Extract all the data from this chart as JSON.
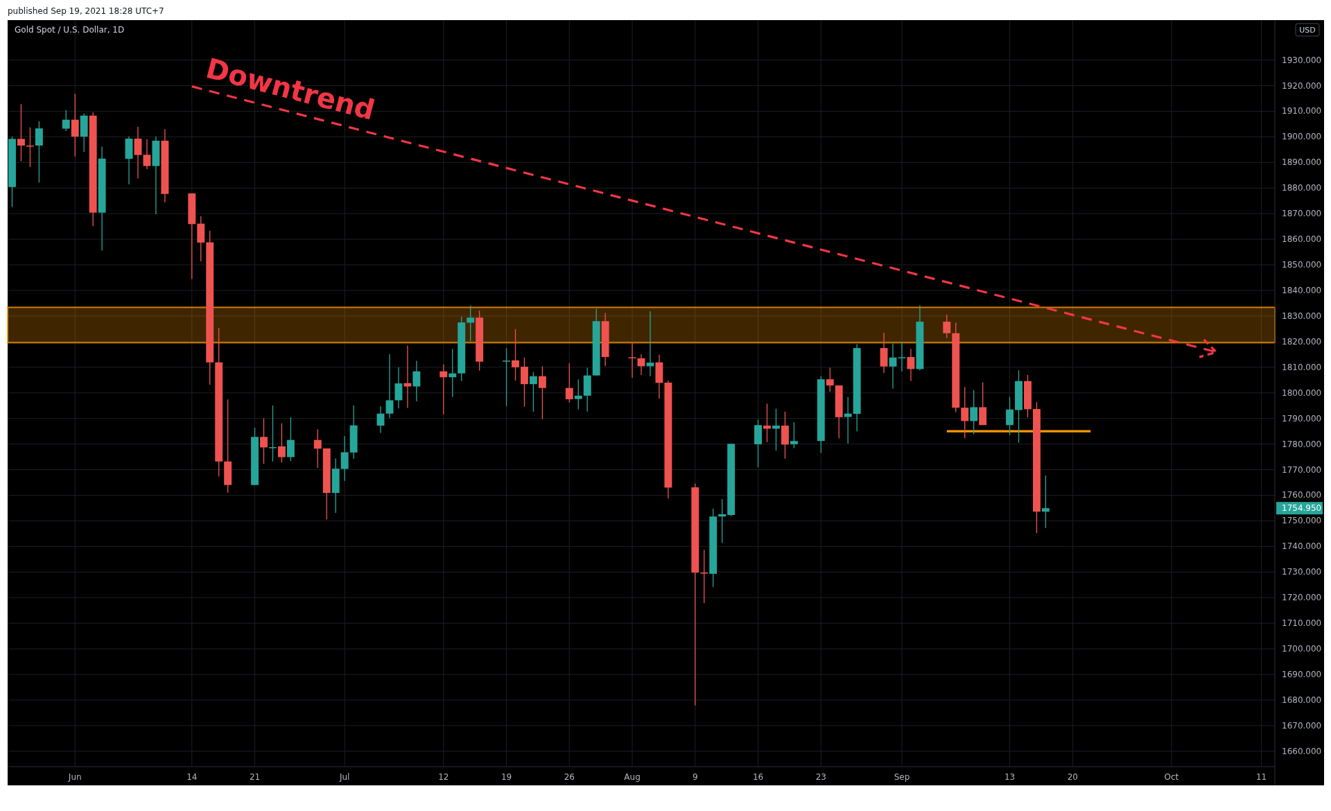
{
  "chart_data": {
    "type": "candlestick",
    "title": "Gold Spot / U.S. Dollar, 1D",
    "ylabel": "USD",
    "x": [
      "2021-05-25",
      "2021-05-26",
      "2021-05-27",
      "2021-05-28",
      "2021-05-31",
      "2021-06-01",
      "2021-06-02",
      "2021-06-03",
      "2021-06-04",
      "2021-06-07",
      "2021-06-08",
      "2021-06-09",
      "2021-06-10",
      "2021-06-11",
      "2021-06-14",
      "2021-06-15",
      "2021-06-16",
      "2021-06-17",
      "2021-06-18",
      "2021-06-21",
      "2021-06-22",
      "2021-06-23",
      "2021-06-24",
      "2021-06-25",
      "2021-06-28",
      "2021-06-29",
      "2021-06-30",
      "2021-07-01",
      "2021-07-02",
      "2021-07-05",
      "2021-07-06",
      "2021-07-07",
      "2021-07-08",
      "2021-07-09",
      "2021-07-12",
      "2021-07-13",
      "2021-07-14",
      "2021-07-15",
      "2021-07-16",
      "2021-07-19",
      "2021-07-20",
      "2021-07-21",
      "2021-07-22",
      "2021-07-23",
      "2021-07-26",
      "2021-07-27",
      "2021-07-28",
      "2021-07-29",
      "2021-07-30",
      "2021-08-02",
      "2021-08-03",
      "2021-08-04",
      "2021-08-05",
      "2021-08-06",
      "2021-08-09",
      "2021-08-10",
      "2021-08-11",
      "2021-08-12",
      "2021-08-13",
      "2021-08-16",
      "2021-08-17",
      "2021-08-18",
      "2021-08-19",
      "2021-08-20",
      "2021-08-23",
      "2021-08-24",
      "2021-08-25",
      "2021-08-26",
      "2021-08-27",
      "2021-08-30",
      "2021-08-31",
      "2021-09-01",
      "2021-09-02",
      "2021-09-03",
      "2021-09-06",
      "2021-09-07",
      "2021-09-08",
      "2021-09-09",
      "2021-09-10",
      "2021-09-13",
      "2021-09-14",
      "2021-09-15",
      "2021-09-16",
      "2021-09-17"
    ],
    "ohlc": [
      [
        1880.4,
        1900.1,
        1872.6,
        1899.2
      ],
      [
        1899.2,
        1912.8,
        1890.5,
        1896.6
      ],
      [
        1896.6,
        1903.7,
        1888.2,
        1896.4
      ],
      [
        1896.6,
        1906.1,
        1882.2,
        1903.3
      ],
      [
        1903.2,
        1910.5,
        1902.3,
        1906.7
      ],
      [
        1906.7,
        1916.8,
        1892.3,
        1900.1
      ],
      [
        1900.1,
        1909.1,
        1894.1,
        1908.3
      ],
      [
        1908.3,
        1909.5,
        1865.1,
        1870.4
      ],
      [
        1870.4,
        1896.2,
        1855.6,
        1891.5
      ],
      [
        1891.4,
        1900.2,
        1881.4,
        1899.3
      ],
      [
        1899.3,
        1903.9,
        1883.7,
        1892.9
      ],
      [
        1893.0,
        1899.1,
        1887.4,
        1888.6
      ],
      [
        1888.6,
        1900.1,
        1869.8,
        1898.5
      ],
      [
        1898.5,
        1903.1,
        1874.4,
        1877.7
      ],
      [
        1877.9,
        1877.9,
        1844.5,
        1865.9
      ],
      [
        1866.1,
        1869.0,
        1851.4,
        1858.7
      ],
      [
        1858.8,
        1863.3,
        1803.2,
        1811.9
      ],
      [
        1811.9,
        1825.4,
        1767.3,
        1773.2
      ],
      [
        1773.2,
        1797.4,
        1761.0,
        1764.0
      ],
      [
        1764.0,
        1786.4,
        1764.0,
        1782.8
      ],
      [
        1782.8,
        1790.1,
        1772.3,
        1778.7
      ],
      [
        1778.6,
        1795.1,
        1773.2,
        1778.8
      ],
      [
        1779.1,
        1788.1,
        1772.8,
        1774.9
      ],
      [
        1774.9,
        1790.5,
        1773.4,
        1781.6
      ],
      [
        1781.6,
        1785.8,
        1770.7,
        1778.2
      ],
      [
        1778.3,
        1778.3,
        1750.6,
        1760.9
      ],
      [
        1760.9,
        1774.4,
        1753.1,
        1770.4
      ],
      [
        1770.3,
        1783.1,
        1765.6,
        1776.8
      ],
      [
        1776.7,
        1795.1,
        1774.2,
        1787.3
      ],
      [
        1787.2,
        1794.8,
        1784.4,
        1791.9
      ],
      [
        1791.9,
        1815.1,
        1790.1,
        1797.1
      ],
      [
        1797.1,
        1810.0,
        1793.9,
        1803.7
      ],
      [
        1803.8,
        1818.5,
        1794.1,
        1802.5
      ],
      [
        1802.5,
        1812.5,
        1796.7,
        1808.4
      ],
      [
        1808.4,
        1811.1,
        1791.6,
        1806.1
      ],
      [
        1806.1,
        1817.2,
        1798.4,
        1807.6
      ],
      [
        1807.6,
        1829.8,
        1804.6,
        1827.5
      ],
      [
        1827.4,
        1834.1,
        1820.1,
        1829.4
      ],
      [
        1829.4,
        1832.1,
        1808.7,
        1812.2
      ],
      [
        1812.4,
        1817.5,
        1794.8,
        1812.6
      ],
      [
        1812.7,
        1824.9,
        1804.8,
        1810.0
      ],
      [
        1810.2,
        1813.8,
        1794.6,
        1803.4
      ],
      [
        1803.4,
        1808.2,
        1792.6,
        1806.5
      ],
      [
        1806.5,
        1810.4,
        1789.7,
        1801.9
      ],
      [
        1801.9,
        1811.6,
        1796.2,
        1797.5
      ],
      [
        1797.6,
        1805.3,
        1793.6,
        1798.9
      ],
      [
        1798.9,
        1809.8,
        1792.7,
        1806.8
      ],
      [
        1806.8,
        1832.8,
        1806.8,
        1828.0
      ],
      [
        1828.0,
        1831.2,
        1810.4,
        1814.0
      ],
      [
        1813.9,
        1819.6,
        1805.9,
        1813.5
      ],
      [
        1813.5,
        1815.1,
        1807.0,
        1810.4
      ],
      [
        1810.4,
        1831.9,
        1806.5,
        1811.8
      ],
      [
        1811.9,
        1814.9,
        1797.8,
        1803.9
      ],
      [
        1804.0,
        1804.8,
        1758.8,
        1763.0
      ],
      [
        1763.1,
        1764.6,
        1677.9,
        1729.8
      ],
      [
        1729.8,
        1738.6,
        1717.8,
        1729.6
      ],
      [
        1729.3,
        1754.8,
        1724.2,
        1751.7
      ],
      [
        1751.7,
        1758.5,
        1741.4,
        1752.6
      ],
      [
        1752.3,
        1780.1,
        1751.8,
        1780.1
      ],
      [
        1779.9,
        1789.6,
        1770.9,
        1787.4
      ],
      [
        1787.2,
        1795.8,
        1780.7,
        1786.0
      ],
      [
        1786.0,
        1793.8,
        1777.5,
        1787.2
      ],
      [
        1787.2,
        1792.7,
        1774.3,
        1779.8
      ],
      [
        1779.9,
        1788.5,
        1778.4,
        1781.2
      ],
      [
        1781.2,
        1806.5,
        1776.5,
        1805.3
      ],
      [
        1805.3,
        1809.8,
        1800.5,
        1802.9
      ],
      [
        1802.9,
        1802.9,
        1782.3,
        1790.5
      ],
      [
        1790.6,
        1798.4,
        1780.2,
        1791.9
      ],
      [
        1791.8,
        1819.0,
        1784.9,
        1817.5
      ],
      [
        1817.5,
        1823.5,
        1807.7,
        1810.3
      ],
      [
        1810.3,
        1819.2,
        1801.6,
        1813.8
      ],
      [
        1813.8,
        1819.9,
        1808.4,
        1813.9
      ],
      [
        1814.0,
        1817.2,
        1804.6,
        1809.3
      ],
      [
        1809.3,
        1834.2,
        1808.8,
        1827.8
      ],
      [
        1827.8,
        1830.5,
        1821.4,
        1823.3
      ],
      [
        1823.3,
        1827.4,
        1792.4,
        1794.2
      ],
      [
        1794.2,
        1802.3,
        1782.3,
        1789.0
      ],
      [
        1789.0,
        1801.1,
        1783.8,
        1794.4
      ],
      [
        1794.4,
        1804.1,
        1787.4,
        1787.4
      ],
      [
        1787.4,
        1798.4,
        1783.5,
        1793.5
      ],
      [
        1793.3,
        1808.8,
        1780.5,
        1804.6
      ],
      [
        1804.6,
        1807.0,
        1790.4,
        1793.6
      ],
      [
        1793.7,
        1796.4,
        1745.2,
        1753.6
      ],
      [
        1753.6,
        1767.7,
        1747.2,
        1754.95
      ]
    ],
    "colors": [
      "#26a69a",
      "#ef5350",
      "#ef5350",
      "#26a69a",
      "#26a69a",
      "#ef5350",
      "#26a69a",
      "#ef5350",
      "#26a69a",
      "#26a69a",
      "#ef5350",
      "#ef5350",
      "#26a69a",
      "#ef5350",
      "#ef5350",
      "#ef5350",
      "#ef5350",
      "#ef5350",
      "#ef5350",
      "#26a69a",
      "#ef5350",
      "#26a69a",
      "#ef5350",
      "#26a69a",
      "#ef5350",
      "#ef5350",
      "#26a69a",
      "#26a69a",
      "#26a69a",
      "#26a69a",
      "#26a69a",
      "#26a69a",
      "#ef5350",
      "#26a69a",
      "#ef5350",
      "#26a69a",
      "#26a69a",
      "#26a69a",
      "#ef5350",
      "#26a69a",
      "#ef5350",
      "#ef5350",
      "#26a69a",
      "#ef5350",
      "#ef5350",
      "#26a69a",
      "#26a69a",
      "#26a69a",
      "#ef5350",
      "#ef5350",
      "#ef5350",
      "#26a69a",
      "#ef5350",
      "#ef5350",
      "#ef5350",
      "#ef5350",
      "#26a69a",
      "#26a69a",
      "#26a69a",
      "#26a69a",
      "#ef5350",
      "#26a69a",
      "#ef5350",
      "#26a69a",
      "#26a69a",
      "#ef5350",
      "#ef5350",
      "#26a69a",
      "#26a69a",
      "#ef5350",
      "#26a69a",
      "#26a69a",
      "#ef5350",
      "#26a69a",
      "#ef5350",
      "#ef5350",
      "#ef5350",
      "#26a69a",
      "#ef5350",
      "#26a69a",
      "#26a69a",
      "#ef5350",
      "#ef5350",
      "#26a69a"
    ],
    "series": [
      {
        "name": "Downtrend",
        "type": "line",
        "x": [
          "2021-06-14",
          "2021-10-06"
        ],
        "values": [
          1919.7,
          1815.9
        ],
        "color": "#f23645",
        "line_style": "dashed"
      },
      {
        "type": "line",
        "x": [
          "2021-09-06",
          "2021-09-22"
        ],
        "values": [
          1785,
          1785
        ],
        "color": "#ff9800",
        "line_style": "solid"
      }
    ],
    "bands": [
      {
        "axis": "y",
        "from": 1819.6,
        "to": 1833.4,
        "color": "#ff9800"
      }
    ],
    "xlim": [
      "2021-05-24T12:00",
      "2021-10-12T12:00"
    ],
    "xticks": [
      {
        "value": "2021-06-01",
        "label": "Jun"
      },
      {
        "value": "2021-06-14",
        "label": "14"
      },
      {
        "value": "2021-06-21",
        "label": "21"
      },
      {
        "value": "2021-07-01",
        "label": "Jul"
      },
      {
        "value": "2021-07-12",
        "label": "12"
      },
      {
        "value": "2021-07-19",
        "label": "19"
      },
      {
        "value": "2021-07-26",
        "label": "26"
      },
      {
        "value": "2021-08-02",
        "label": "Aug"
      },
      {
        "value": "2021-08-09",
        "label": "9"
      },
      {
        "value": "2021-08-16",
        "label": "16"
      },
      {
        "value": "2021-08-23",
        "label": "23"
      },
      {
        "value": "2021-09-01",
        "label": "Sep"
      },
      {
        "value": "2021-09-13",
        "label": "13"
      },
      {
        "value": "2021-09-20",
        "label": "20"
      },
      {
        "value": "2021-10-01",
        "label": "Oct"
      },
      {
        "value": "2021-10-11",
        "label": "11"
      }
    ],
    "ylim": [
      1654,
      1945.6
    ],
    "yticks": [
      {
        "value": 1660,
        "label": "1660.000"
      },
      {
        "value": 1670,
        "label": "1670.000"
      },
      {
        "value": 1680,
        "label": "1680.000"
      },
      {
        "value": 1690,
        "label": "1690.000"
      },
      {
        "value": 1700,
        "label": "1700.000"
      },
      {
        "value": 1710,
        "label": "1710.000"
      },
      {
        "value": 1720,
        "label": "1720.000"
      },
      {
        "value": 1730,
        "label": "1730.000"
      },
      {
        "value": 1740,
        "label": "1740.000"
      },
      {
        "value": 1750,
        "label": "1750.000"
      },
      {
        "value": 1760,
        "label": "1760.000"
      },
      {
        "value": 1770,
        "label": "1770.000"
      },
      {
        "value": 1780,
        "label": "1780.000"
      },
      {
        "value": 1790,
        "label": "1790.000"
      },
      {
        "value": 1800,
        "label": "1800.000"
      },
      {
        "value": 1810,
        "label": "1810.000"
      },
      {
        "value": 1820,
        "label": "1820.000"
      },
      {
        "value": 1830,
        "label": "1830.000"
      },
      {
        "value": 1840,
        "label": "1840.000"
      },
      {
        "value": 1850,
        "label": "1850.000"
      },
      {
        "value": 1860,
        "label": "1860.000"
      },
      {
        "value": 1870,
        "label": "1870.000"
      },
      {
        "value": 1880,
        "label": "1880.000"
      },
      {
        "value": 1890,
        "label": "1890.000"
      },
      {
        "value": 1900,
        "label": "1900.000"
      },
      {
        "value": 1910,
        "label": "1910.000"
      },
      {
        "value": 1920,
        "label": "1920.000"
      },
      {
        "value": 1930,
        "label": "1930.000"
      }
    ],
    "grid": true,
    "annotations": [
      "published Sep 19, 2021 18:28 UTC+7",
      "1754.950"
    ]
  }
}
